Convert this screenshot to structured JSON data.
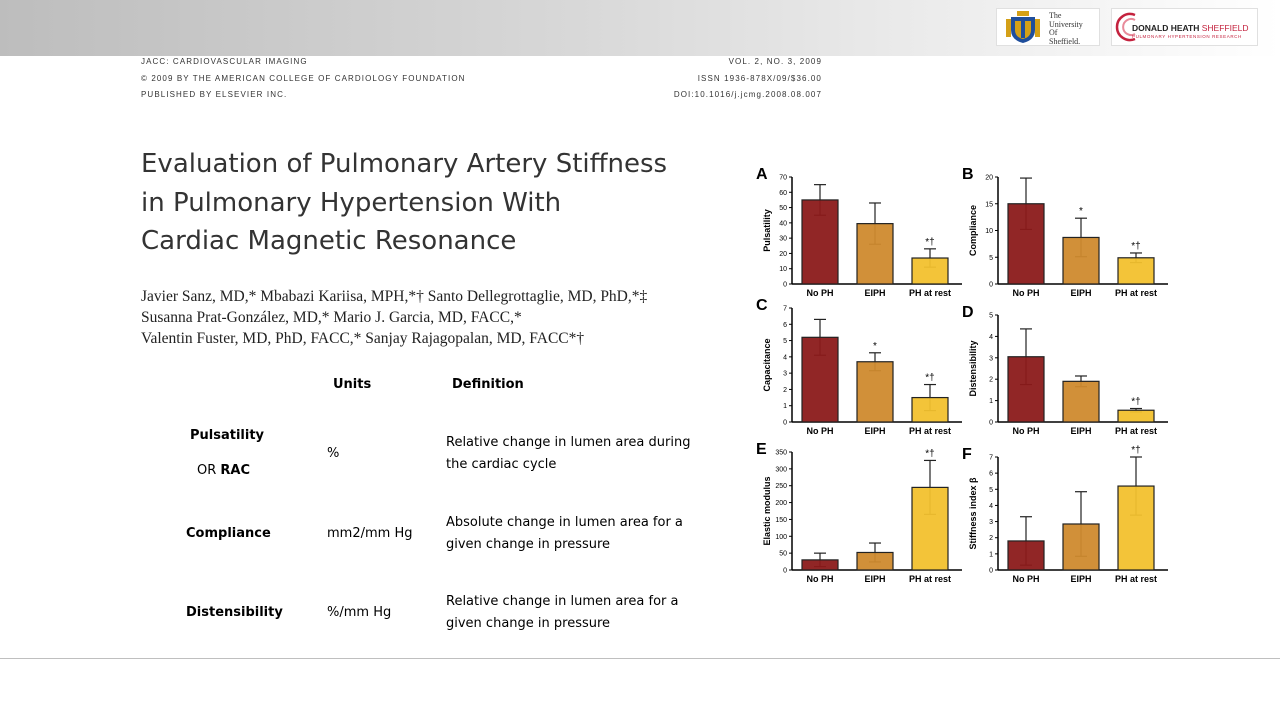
{
  "header": {
    "journal": "JACC: CARDIOVASCULAR IMAGING",
    "volume": "VOL. 2, NO. 3, 2009",
    "copyright": "© 2009 BY THE AMERICAN COLLEGE OF CARDIOLOGY FOUNDATION",
    "issn": "ISSN 1936-878X/09/$36.00",
    "publisher": "PUBLISHED BY ELSEVIER INC.",
    "doi": "DOI:10.1016/j.jcmg.2008.08.007"
  },
  "logos": {
    "university_lines": [
      "The",
      "University",
      "Of",
      "Sheffield."
    ],
    "dh_name_bold": "DONALD HEATH",
    "dh_name_light": " SHEFFIELD",
    "dh_subtitle": "PULMONARY HYPERTENSION RESEARCH"
  },
  "paper": {
    "title_lines": [
      "Evaluation of Pulmonary Artery Stiffness",
      "in Pulmonary Hypertension With",
      "Cardiac Magnetic Resonance"
    ],
    "author_lines": [
      "Javier Sanz, MD,* Mbabazi Kariisa, MPH,*† Santo Dellegrottaglie, MD, PhD,*‡",
      "Susanna Prat-González, MD,* Mario J. Garcia, MD, FACC,*",
      "Valentin Fuster, MD, PhD, FACC,* Sanjay Rajagopalan, MD, FACC*†"
    ]
  },
  "table": {
    "headers": {
      "units": "Units",
      "definition": "Definition"
    },
    "rows": [
      {
        "name": "Pulsatility",
        "alt_prefix": "OR ",
        "alt_bold": "RAC",
        "units": "%",
        "definition": "Relative change in lumen area during the cardiac cycle"
      },
      {
        "name": "Compliance",
        "units": "mm2/mm  Hg",
        "definition": "Absolute change in lumen area for a given change in pressure"
      },
      {
        "name": "Distensibility",
        "units": "%/mm  Hg",
        "definition": "Relative change in lumen area for a given change in pressure"
      }
    ]
  },
  "chart_data": [
    {
      "panel": "A",
      "type": "bar",
      "categories": [
        "No PH",
        "EIPH",
        "PH at rest"
      ],
      "values": [
        55,
        39.5,
        17
      ],
      "errors": [
        10,
        13.5,
        6
      ],
      "ylabel": "Pulsatility",
      "ylim": [
        0,
        70
      ],
      "yticks": [
        0,
        10,
        20,
        30,
        40,
        50,
        60,
        70
      ],
      "annotations": [
        "",
        "",
        "*†"
      ]
    },
    {
      "panel": "B",
      "type": "bar",
      "categories": [
        "No PH",
        "EIPH",
        "PH at rest"
      ],
      "values": [
        15,
        8.7,
        4.9
      ],
      "errors": [
        4.8,
        3.6,
        0.9
      ],
      "ylabel": "Compliance",
      "ylim": [
        0,
        20
      ],
      "yticks": [
        0,
        5,
        10,
        15,
        20
      ],
      "annotations": [
        "",
        "*",
        "*†"
      ]
    },
    {
      "panel": "C",
      "type": "bar",
      "categories": [
        "No PH",
        "EIPH",
        "PH at rest"
      ],
      "values": [
        5.2,
        3.7,
        1.5
      ],
      "errors": [
        1.1,
        0.55,
        0.8
      ],
      "ylabel": "Capacitance",
      "ylim": [
        0,
        7
      ],
      "yticks": [
        0,
        1,
        2,
        3,
        4,
        5,
        6,
        7
      ],
      "annotations": [
        "",
        "*",
        "*†"
      ]
    },
    {
      "panel": "D",
      "type": "bar",
      "categories": [
        "No PH",
        "EIPH",
        "PH at rest"
      ],
      "values": [
        3.05,
        1.9,
        0.55
      ],
      "errors": [
        1.3,
        0.25,
        0.08
      ],
      "ylabel": "Distensibility",
      "ylim": [
        0,
        5
      ],
      "yticks": [
        0,
        1,
        2,
        3,
        4,
        5
      ],
      "annotations": [
        "",
        "",
        "*†"
      ]
    },
    {
      "panel": "E",
      "type": "bar",
      "categories": [
        "No PH",
        "EIPH",
        "PH at rest"
      ],
      "values": [
        30,
        52,
        245
      ],
      "errors": [
        20,
        28,
        80
      ],
      "ylabel": "Elastic modulus",
      "ylim": [
        0,
        350
      ],
      "yticks": [
        0,
        50,
        100,
        150,
        200,
        250,
        300,
        350
      ],
      "annotations": [
        "",
        "",
        "*†"
      ]
    },
    {
      "panel": "F",
      "type": "bar",
      "categories": [
        "No PH",
        "EIPH",
        "PH at rest"
      ],
      "values": [
        1.8,
        2.85,
        5.2
      ],
      "errors": [
        1.5,
        2.0,
        1.8
      ],
      "ylabel": "Stiffness index β",
      "ylim": [
        0,
        7
      ],
      "yticks": [
        0,
        1,
        2,
        3,
        4,
        5,
        6,
        7
      ],
      "annotations": [
        "",
        "",
        "*†"
      ]
    }
  ],
  "colors": {
    "no_ph": "#8b1a1a",
    "eiph": "#cf8a2e",
    "ph_rest": "#f2c12e"
  }
}
